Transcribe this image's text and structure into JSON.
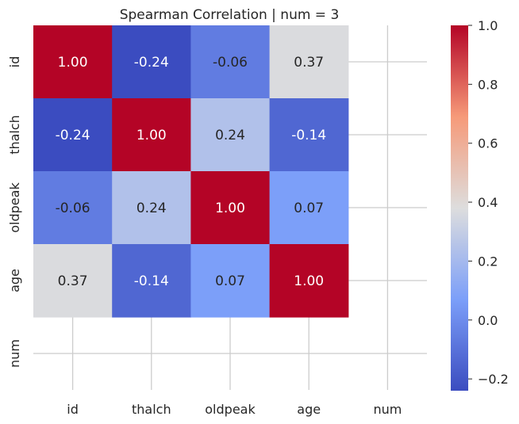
{
  "chart_data": {
    "type": "heatmap",
    "title": "Spearman Correlation | num = 3",
    "x_categories": [
      "id",
      "thalch",
      "oldpeak",
      "age",
      "num"
    ],
    "y_categories": [
      "id",
      "thalch",
      "oldpeak",
      "age",
      "num"
    ],
    "values": [
      [
        1.0,
        -0.24,
        -0.06,
        0.37,
        null
      ],
      [
        -0.24,
        1.0,
        0.24,
        -0.14,
        null
      ],
      [
        -0.06,
        0.24,
        1.0,
        0.07,
        null
      ],
      [
        0.37,
        -0.14,
        0.07,
        1.0,
        null
      ],
      [
        null,
        null,
        null,
        null,
        null
      ]
    ],
    "annotation_format": "0.00",
    "colormap": "coolwarm",
    "vmin": -0.24,
    "vmax": 1.0,
    "colorbar_ticks": [
      "1.0",
      "0.8",
      "0.6",
      "0.4",
      "0.2",
      "0.0",
      "−0.2"
    ],
    "grid": true
  },
  "colors": {
    "text_dark": "#262626",
    "text_light": "#ffffff",
    "grid": "#cccccc"
  }
}
